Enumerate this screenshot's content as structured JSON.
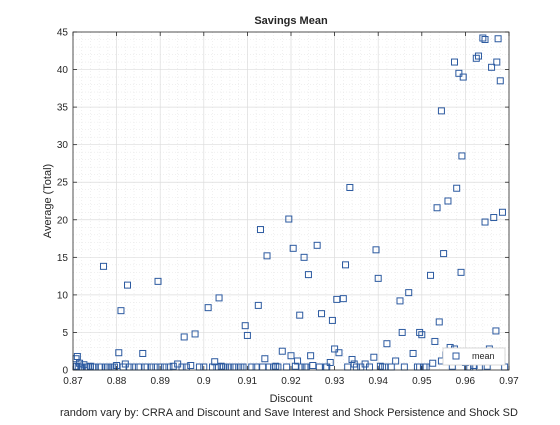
{
  "chart_data": {
    "type": "scatter",
    "title": "Savings Mean",
    "xlabel": "Discount",
    "ylabel": "Average (Total)",
    "caption": "random vary by: CRRA and Discount and Save Interest and Shock Persistence and Shock SD",
    "xlim": [
      0.87,
      0.97
    ],
    "ylim": [
      0,
      45
    ],
    "xticks": [
      "0.87",
      "0.88",
      "0.89",
      "0.9",
      "0.91",
      "0.92",
      "0.93",
      "0.94",
      "0.95",
      "0.96",
      "0.97"
    ],
    "yticks": [
      "0",
      "5",
      "10",
      "15",
      "20",
      "25",
      "30",
      "35",
      "40",
      "45"
    ],
    "grid": true,
    "minor_grid": true,
    "legend": {
      "position": "bottom-right",
      "entries": [
        "mean"
      ]
    },
    "marker": "square",
    "marker_color": "#2c5aa0",
    "series": [
      {
        "name": "mean",
        "points": [
          [
            0.8705,
            1.5
          ],
          [
            0.8708,
            0.5
          ],
          [
            0.871,
            1.8
          ],
          [
            0.8712,
            0.2
          ],
          [
            0.8715,
            0.9
          ],
          [
            0.8718,
            0.4
          ],
          [
            0.872,
            0.1
          ],
          [
            0.8725,
            0.7
          ],
          [
            0.873,
            0.3
          ],
          [
            0.8735,
            0.1
          ],
          [
            0.874,
            0.5
          ],
          [
            0.8745,
            0.2
          ],
          [
            0.875,
            0.1
          ],
          [
            0.876,
            0.3
          ],
          [
            0.8765,
            0.1
          ],
          [
            0.877,
            13.8
          ],
          [
            0.8775,
            0.2
          ],
          [
            0.878,
            0.4
          ],
          [
            0.8785,
            0.1
          ],
          [
            0.879,
            0.3
          ],
          [
            0.8795,
            0.1
          ],
          [
            0.88,
            0.6
          ],
          [
            0.8805,
            2.3
          ],
          [
            0.881,
            7.9
          ],
          [
            0.8815,
            0.1
          ],
          [
            0.882,
            0.8
          ],
          [
            0.8825,
            11.3
          ],
          [
            0.883,
            0.2
          ],
          [
            0.884,
            0.1
          ],
          [
            0.885,
            0.3
          ],
          [
            0.886,
            2.2
          ],
          [
            0.8865,
            0.1
          ],
          [
            0.887,
            0.4
          ],
          [
            0.888,
            0.1
          ],
          [
            0.889,
            0.2
          ],
          [
            0.8895,
            11.8
          ],
          [
            0.89,
            0.1
          ],
          [
            0.891,
            0.3
          ],
          [
            0.892,
            0.1
          ],
          [
            0.893,
            0.5
          ],
          [
            0.894,
            0.8
          ],
          [
            0.895,
            0.2
          ],
          [
            0.8955,
            4.4
          ],
          [
            0.896,
            0.1
          ],
          [
            0.897,
            0.6
          ],
          [
            0.898,
            4.8
          ],
          [
            0.899,
            0.1
          ],
          [
            0.9,
            0.3
          ],
          [
            0.901,
            8.3
          ],
          [
            0.902,
            0.1
          ],
          [
            0.9025,
            1.1
          ],
          [
            0.903,
            0.4
          ],
          [
            0.9035,
            9.6
          ],
          [
            0.904,
            0.5
          ],
          [
            0.9045,
            0.2
          ],
          [
            0.905,
            0.1
          ],
          [
            0.9055,
            0.3
          ],
          [
            0.906,
            0.1
          ],
          [
            0.907,
            0.2
          ],
          [
            0.908,
            0.1
          ],
          [
            0.909,
            0.1
          ],
          [
            0.9095,
            5.9
          ],
          [
            0.91,
            4.6
          ],
          [
            0.911,
            0.2
          ],
          [
            0.912,
            0.1
          ],
          [
            0.9125,
            8.6
          ],
          [
            0.913,
            18.7
          ],
          [
            0.9135,
            0.1
          ],
          [
            0.914,
            1.5
          ],
          [
            0.9145,
            15.2
          ],
          [
            0.915,
            0.3
          ],
          [
            0.916,
            0.1
          ],
          [
            0.917,
            0.2
          ],
          [
            0.918,
            2.5
          ],
          [
            0.919,
            0.1
          ],
          [
            0.9195,
            20.1
          ],
          [
            0.92,
            1.9
          ],
          [
            0.9205,
            16.2
          ],
          [
            0.921,
            0.5
          ],
          [
            0.9215,
            1.2
          ],
          [
            0.922,
            7.3
          ],
          [
            0.9225,
            0.3
          ],
          [
            0.923,
            15.0
          ],
          [
            0.9235,
            0.1
          ],
          [
            0.924,
            12.7
          ],
          [
            0.9245,
            1.9
          ],
          [
            0.925,
            0.6
          ],
          [
            0.926,
            16.6
          ],
          [
            0.9265,
            0.2
          ],
          [
            0.927,
            7.5
          ],
          [
            0.928,
            0.1
          ],
          [
            0.929,
            1.0
          ],
          [
            0.9295,
            6.6
          ],
          [
            0.93,
            2.8
          ],
          [
            0.9305,
            9.4
          ],
          [
            0.931,
            2.3
          ],
          [
            0.932,
            9.5
          ],
          [
            0.9325,
            14.0
          ],
          [
            0.933,
            0.4
          ],
          [
            0.9335,
            24.3
          ],
          [
            0.934,
            1.4
          ],
          [
            0.935,
            0.1
          ],
          [
            0.936,
            0.3
          ],
          [
            0.937,
            0.8
          ],
          [
            0.938,
            0.1
          ],
          [
            0.939,
            1.7
          ],
          [
            0.9395,
            16.0
          ],
          [
            0.94,
            12.2
          ],
          [
            0.9405,
            0.5
          ],
          [
            0.941,
            0.2
          ],
          [
            0.942,
            3.5
          ],
          [
            0.943,
            0.1
          ],
          [
            0.944,
            1.2
          ],
          [
            0.945,
            9.2
          ],
          [
            0.9455,
            5.0
          ],
          [
            0.946,
            0.3
          ],
          [
            0.947,
            10.3
          ],
          [
            0.948,
            2.2
          ],
          [
            0.949,
            0.1
          ],
          [
            0.9495,
            5.0
          ],
          [
            0.95,
            4.7
          ],
          [
            0.9505,
            0.4
          ],
          [
            0.951,
            0.1
          ],
          [
            0.952,
            12.6
          ],
          [
            0.9525,
            0.9
          ],
          [
            0.953,
            3.8
          ],
          [
            0.9535,
            21.6
          ],
          [
            0.954,
            6.4
          ],
          [
            0.9545,
            34.5
          ],
          [
            0.955,
            15.5
          ],
          [
            0.9555,
            2.0
          ],
          [
            0.956,
            22.5
          ],
          [
            0.9565,
            3.0
          ],
          [
            0.957,
            0.5
          ],
          [
            0.9575,
            2.8
          ],
          [
            0.958,
            24.2
          ],
          [
            0.9585,
            39.5
          ],
          [
            0.959,
            13.0
          ],
          [
            0.9592,
            28.5
          ],
          [
            0.9595,
            39.0
          ],
          [
            0.96,
            1.0
          ],
          [
            0.9605,
            0.3
          ],
          [
            0.961,
            0.1
          ],
          [
            0.962,
            0.6
          ],
          [
            0.9625,
            41.5
          ],
          [
            0.963,
            41.8
          ],
          [
            0.9632,
            0.2
          ],
          [
            0.9635,
            1.8
          ],
          [
            0.964,
            44.2
          ],
          [
            0.9645,
            19.7
          ],
          [
            0.965,
            0.5
          ],
          [
            0.9655,
            2.8
          ],
          [
            0.966,
            40.3
          ],
          [
            0.9665,
            20.3
          ],
          [
            0.967,
            5.2
          ],
          [
            0.9672,
            41.0
          ],
          [
            0.9675,
            44.1
          ],
          [
            0.968,
            38.5
          ],
          [
            0.9685,
            21.0
          ],
          [
            0.969,
            0.1
          ],
          [
            0.9575,
            41.0
          ],
          [
            0.9645,
            44.0
          ],
          [
            0.9545,
            1.2
          ],
          [
            0.9495,
            0.2
          ],
          [
            0.9415,
            0.3
          ],
          [
            0.9345,
            0.8
          ],
          [
            0.9282,
            0.4
          ],
          [
            0.9232,
            0.2
          ],
          [
            0.9165,
            0.5
          ],
          [
            0.9085,
            0.3
          ]
        ]
      }
    ]
  }
}
